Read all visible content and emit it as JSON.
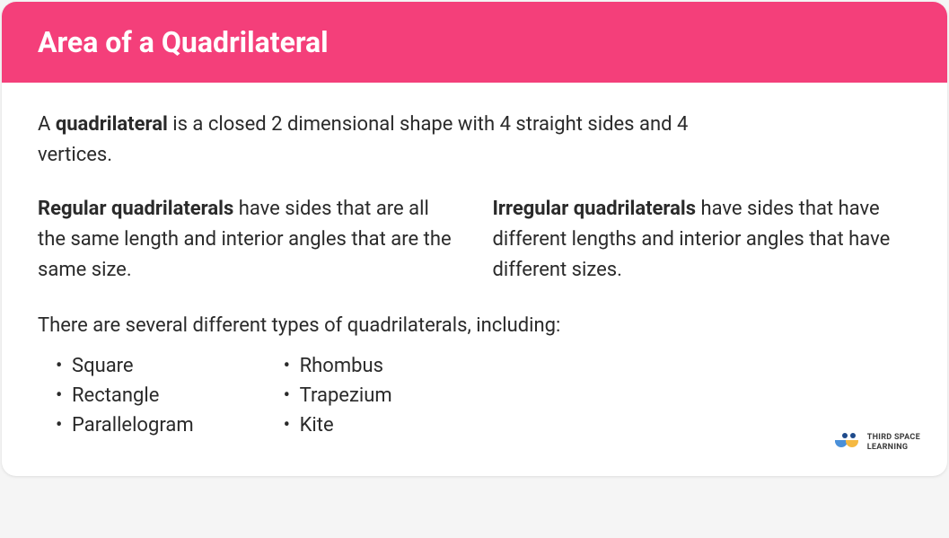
{
  "colors": {
    "header_bg": "#f43f7a",
    "header_text": "#ffffff",
    "body_text": "#2a2a2a",
    "card_bg": "#ffffff"
  },
  "header": {
    "title": "Area of a Quadrilateral"
  },
  "intro": {
    "prefix": "A ",
    "bold": "quadrilateral",
    "suffix": " is a closed 2 dimensional shape with 4 straight sides and 4 vertices."
  },
  "regular": {
    "bold": "Regular quadrilaterals",
    "text": " have sides that are all the same length and interior angles that are the same size."
  },
  "irregular": {
    "bold": "Irregular quadrilaterals",
    "text": " have sides that have different lengths and interior angles that have different sizes."
  },
  "types": {
    "intro": "There are several different types of quadrilaterals, including:",
    "left": [
      "Square",
      "Rectangle",
      "Parallelogram"
    ],
    "right": [
      "Rhombus",
      "Trapezium",
      "Kite"
    ]
  },
  "logo": {
    "line1": "THIRD SPACE",
    "line2": "LEARNING"
  }
}
